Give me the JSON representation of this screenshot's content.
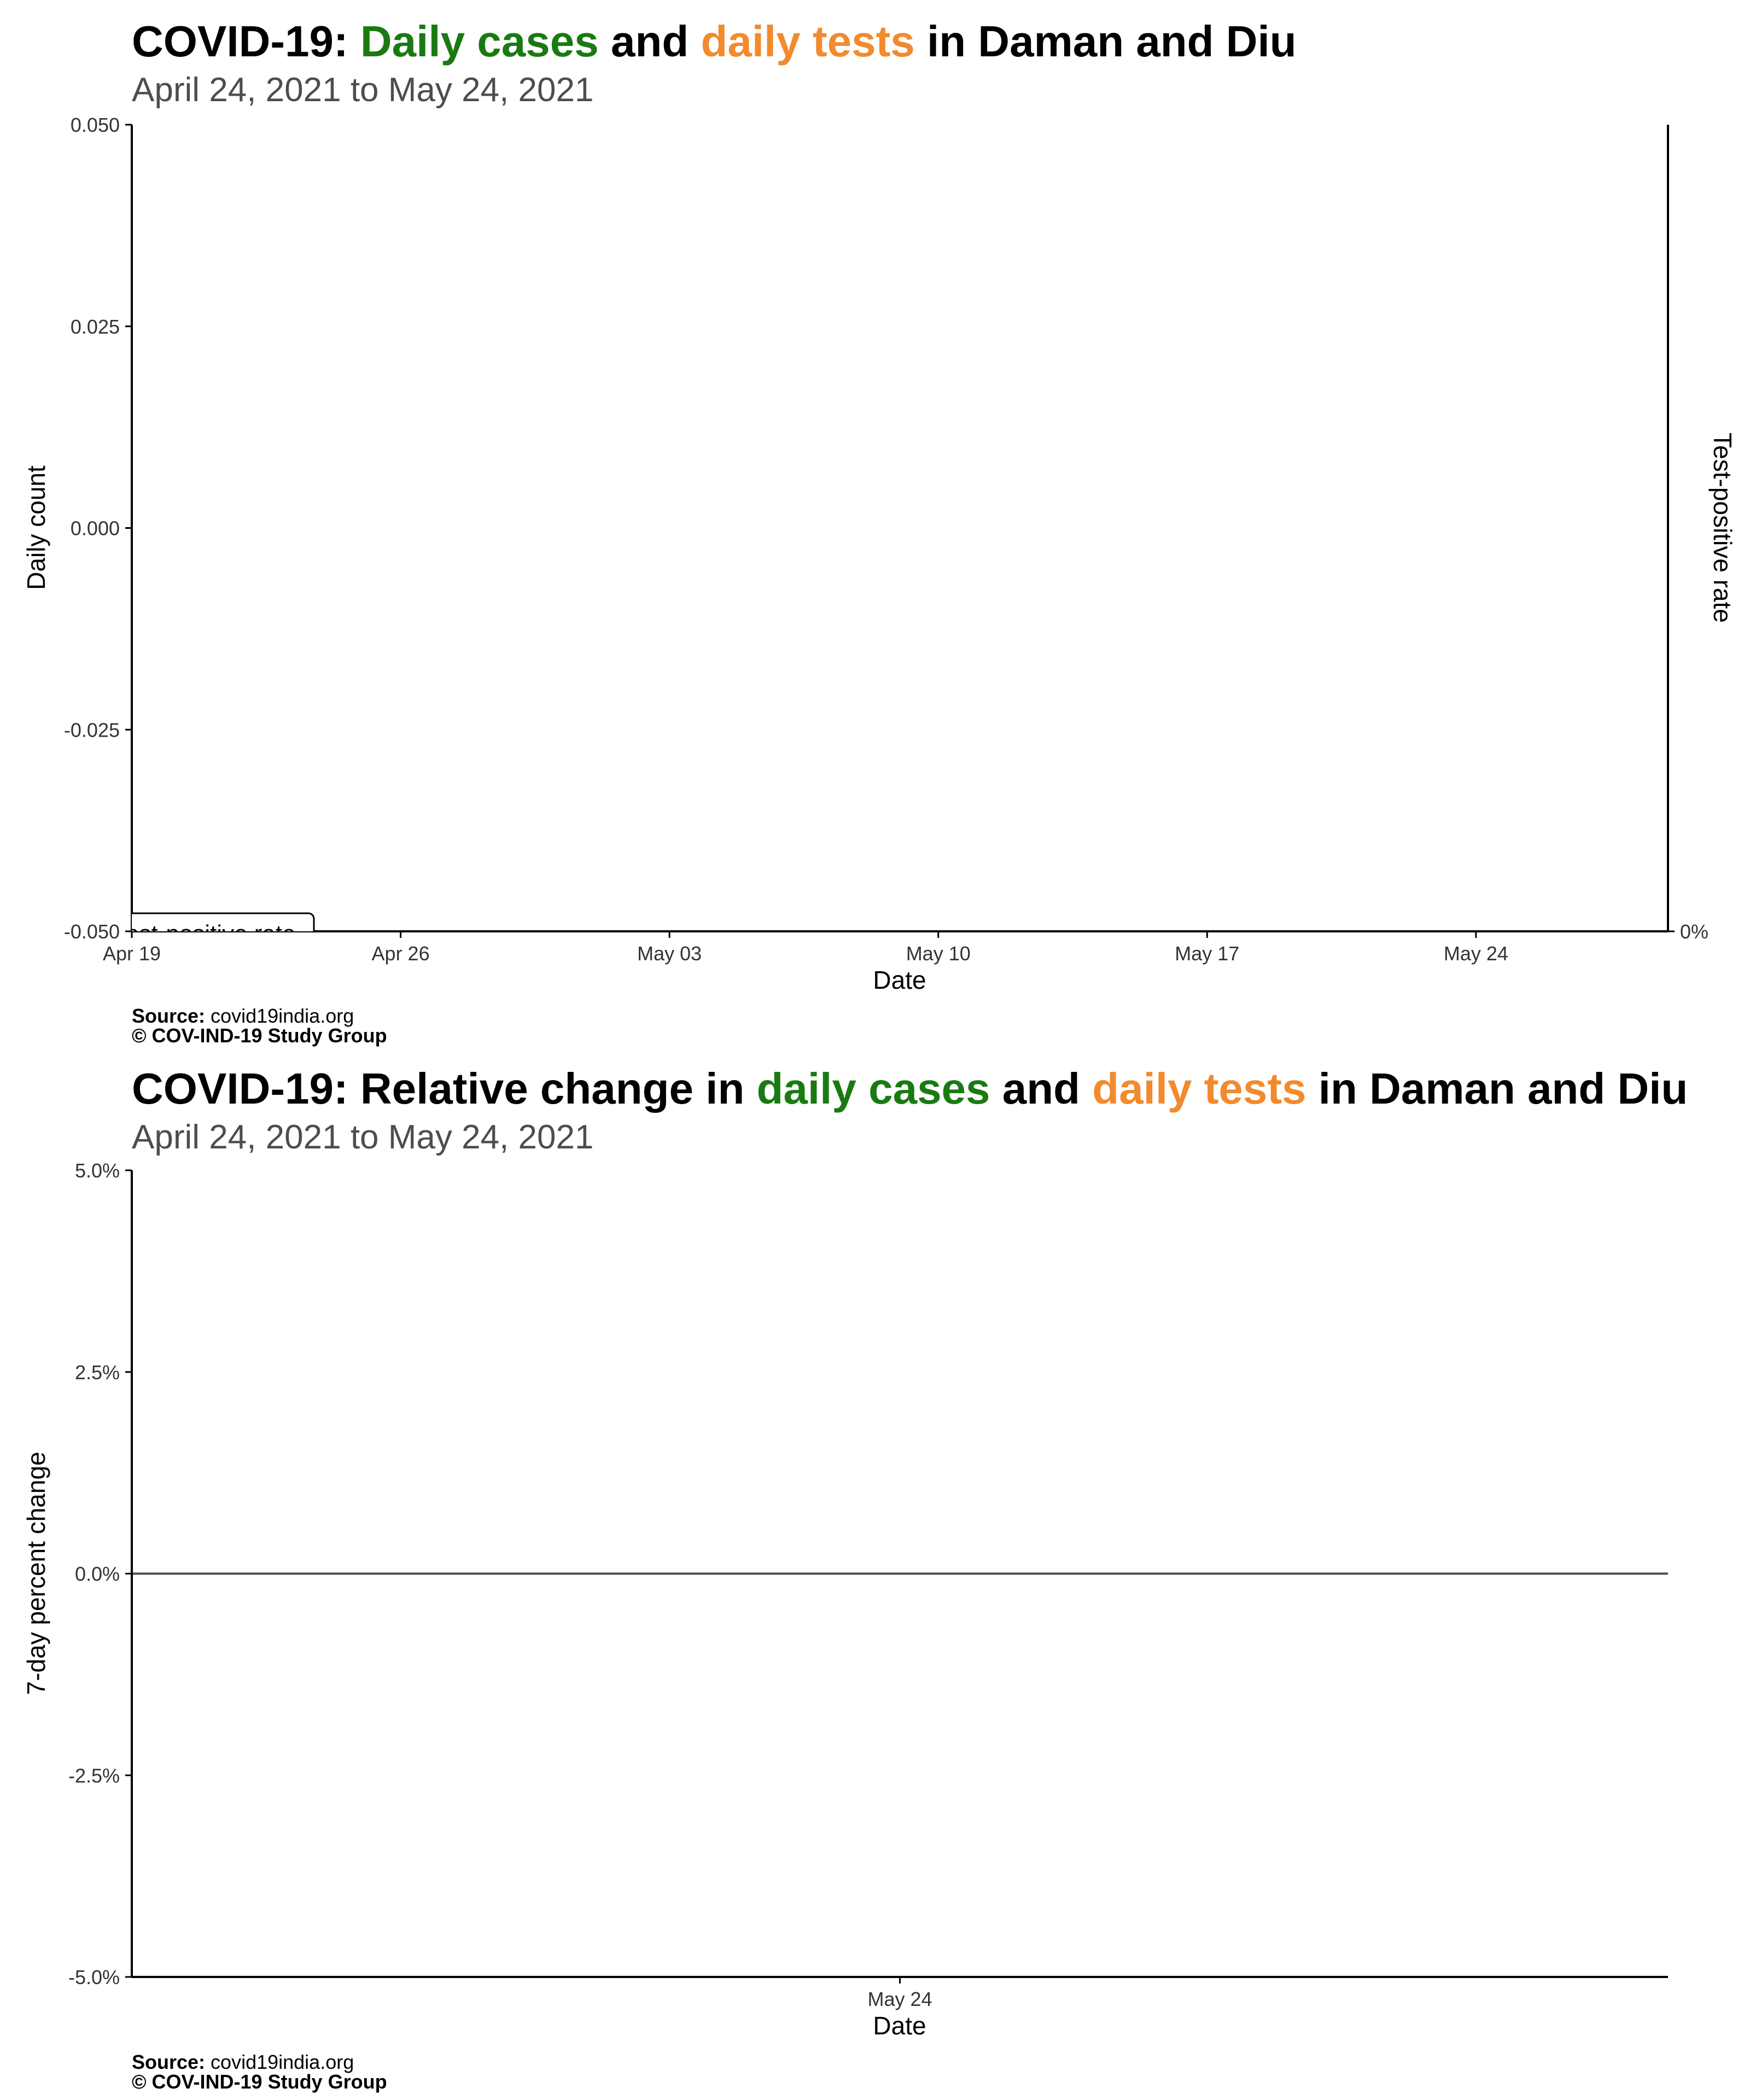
{
  "colors": {
    "cases": "#1a7a12",
    "tests": "#f28a2e",
    "axis": "#000000",
    "subtitle": "#4d4d4d"
  },
  "panel1": {
    "title_prefix": "COVID-19: ",
    "title_cases": "Daily cases",
    "title_and": " and ",
    "title_tests": "daily tests",
    "title_suffix": " in Daman and Diu",
    "subtitle": "April 24, 2021 to May 24, 2021",
    "legend_label": "Test-positive rate",
    "source_label": "Source:",
    "source_value": " covid19india.org",
    "copyright": "© COV-IND-19 Study Group"
  },
  "panel2": {
    "title_prefix": "COVID-19: Relative change in ",
    "title_cases": "daily cases",
    "title_and": " and ",
    "title_tests": "daily tests",
    "title_suffix": " in Daman and Diu",
    "subtitle": "April 24, 2021 to May 24, 2021",
    "source_label": "Source:",
    "source_value": " covid19india.org",
    "copyright": "© COV-IND-19 Study Group"
  },
  "chart_data": [
    {
      "type": "bar",
      "series": [],
      "xlabel": "Date",
      "ylabel": "Daily count",
      "ylabel_right": "Test-positive rate",
      "ylim": [
        -0.05,
        0.05
      ],
      "yticks": [
        "-0.050",
        "-0.025",
        "0.000",
        "0.025",
        "0.050"
      ],
      "ytick_values": [
        -0.05,
        -0.025,
        0,
        0.025,
        0.05
      ],
      "y2ticks": [
        "0%"
      ],
      "y2tick_values": [
        0
      ],
      "xlim": [
        "2021-04-19",
        "2021-05-29"
      ],
      "xticks": [
        "Apr 19",
        "Apr 26",
        "May 03",
        "May 10",
        "May 17",
        "May 24"
      ],
      "xtick_values": [
        "2021-04-19",
        "2021-04-26",
        "2021-05-03",
        "2021-05-10",
        "2021-05-17",
        "2021-05-24"
      ],
      "grid": false,
      "legend": "bottom-left"
    },
    {
      "type": "line",
      "series": [],
      "xlabel": "Date",
      "ylabel": "7-day percent change",
      "ylim": [
        -0.05,
        0.05
      ],
      "yticks": [
        "-5.0%",
        "-2.5%",
        "0.0%",
        "2.5%",
        "5.0%"
      ],
      "ytick_values": [
        -0.05,
        -0.025,
        0,
        0.025,
        0.05
      ],
      "xticks": [
        "May 24"
      ],
      "xtick_values": [
        "2021-05-24"
      ],
      "reference_line_y": 0,
      "grid": false
    }
  ]
}
